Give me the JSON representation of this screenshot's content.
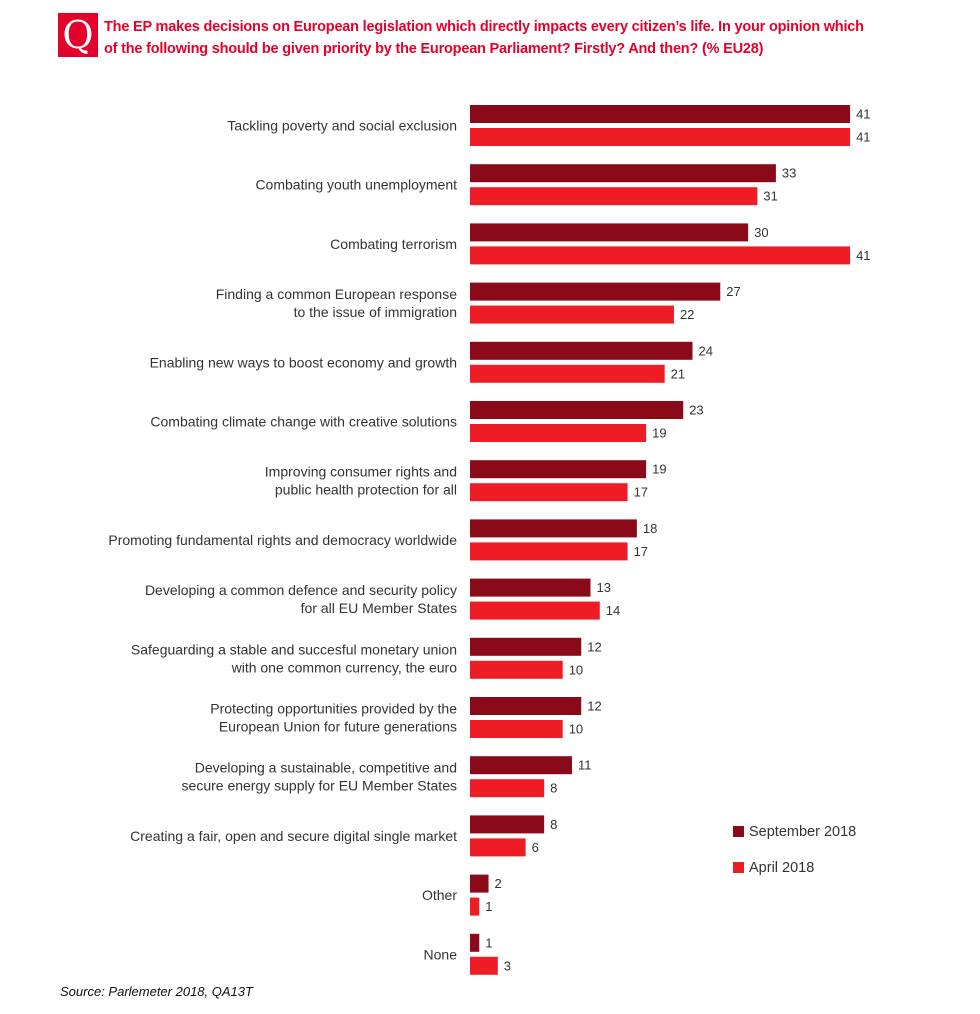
{
  "header": {
    "badge": "Q",
    "question_line1": "The EP makes decisions on European legislation which directly impacts every citizen’s life. In your opinion which",
    "question_line2": "of the following should be given priority by the European Parliament? Firstly? And then? (% EU28)"
  },
  "source": "Source: Parlemeter 2018, QA13T",
  "colors": {
    "september": "#8b0a1a",
    "april": "#ee1c25",
    "accent": "#e4002b"
  },
  "chart_data": {
    "type": "bar",
    "orientation": "horizontal",
    "categories": [
      [
        "Tackling poverty and social exclusion"
      ],
      [
        "Combating youth unemployment"
      ],
      [
        "Combating terrorism"
      ],
      [
        "Finding a common European response",
        "to the issue of immigration"
      ],
      [
        "Enabling new ways to boost economy and growth"
      ],
      [
        "Combating climate change with creative solutions"
      ],
      [
        "Improving consumer rights and",
        "public health protection for all"
      ],
      [
        "Promoting fundamental rights and democracy worldwide"
      ],
      [
        "Developing a common defence and security policy",
        "for all EU Member States"
      ],
      [
        "Safeguarding a stable and succesful monetary union",
        "with one common currency, the euro"
      ],
      [
        "Protecting opportunities provided by the",
        "European Union for future generations"
      ],
      [
        "Developing a sustainable, competitive and",
        "secure energy supply for EU Member States"
      ],
      [
        "Creating a fair, open and secure digital single market"
      ],
      [
        "Other"
      ],
      [
        "None"
      ]
    ],
    "series": [
      {
        "name": "September 2018",
        "color": "#8b0a1a",
        "values": [
          41,
          33,
          30,
          27,
          24,
          23,
          19,
          18,
          13,
          12,
          12,
          11,
          8,
          2,
          1
        ]
      },
      {
        "name": "April 2018",
        "color": "#ee1c25",
        "values": [
          41,
          31,
          41,
          22,
          21,
          19,
          17,
          17,
          14,
          10,
          10,
          8,
          6,
          1,
          3
        ]
      }
    ],
    "xlim": [
      0,
      41
    ],
    "grid": false,
    "legend_position": "right"
  }
}
